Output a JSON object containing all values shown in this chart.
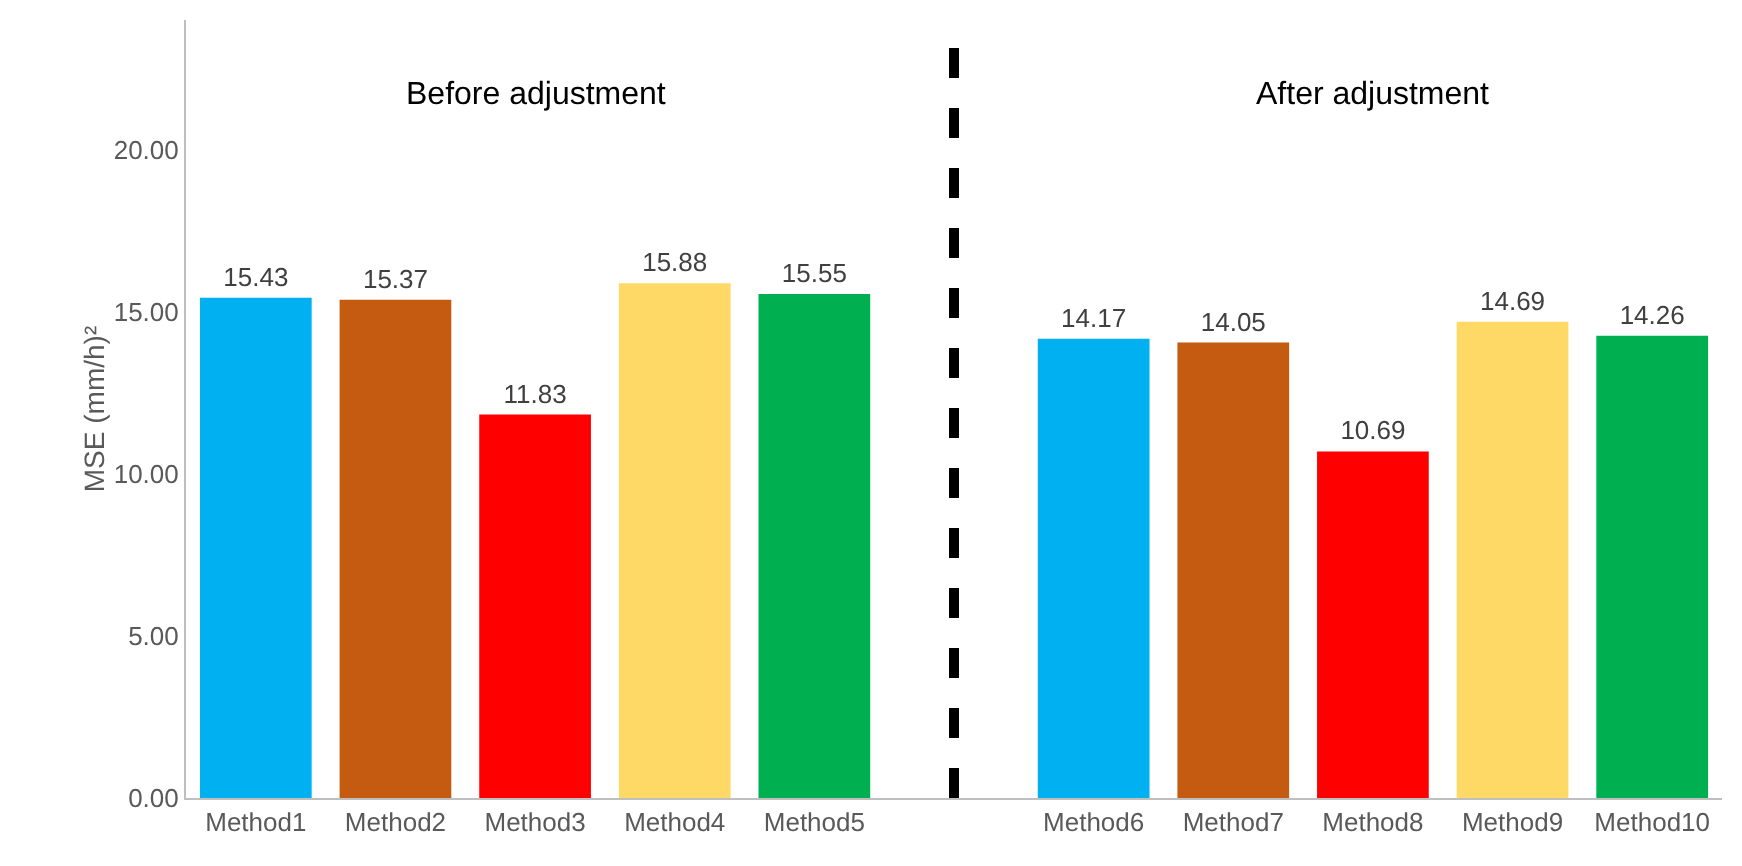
{
  "chart_data": {
    "type": "bar",
    "categories": [
      "Method1",
      "Method2",
      "Method3",
      "Method4",
      "Method5",
      null,
      "Method6",
      "Method7",
      "Method8",
      "Method9",
      "Method10"
    ],
    "values": [
      15.43,
      15.37,
      11.83,
      15.88,
      15.55,
      null,
      14.17,
      14.05,
      10.69,
      14.69,
      14.26
    ],
    "colors": [
      "#00b0f0",
      "#c55a11",
      "#ff0000",
      "#ffd966",
      "#00b050",
      null,
      "#00b0f0",
      "#c55a11",
      "#ff0000",
      "#ffd966",
      "#00b050"
    ],
    "ylabel": "MSE (mm/h)²",
    "ylim": [
      0,
      24
    ],
    "yticks": [
      {
        "value": 0,
        "label": "0.00"
      },
      {
        "value": 5,
        "label": "5.00"
      },
      {
        "value": 10,
        "label": "10.00"
      },
      {
        "value": 15,
        "label": "15.00"
      },
      {
        "value": 20,
        "label": "20.00"
      }
    ],
    "data_labels": true,
    "annotations": [
      "Before adjustment",
      "After adjustment"
    ]
  }
}
